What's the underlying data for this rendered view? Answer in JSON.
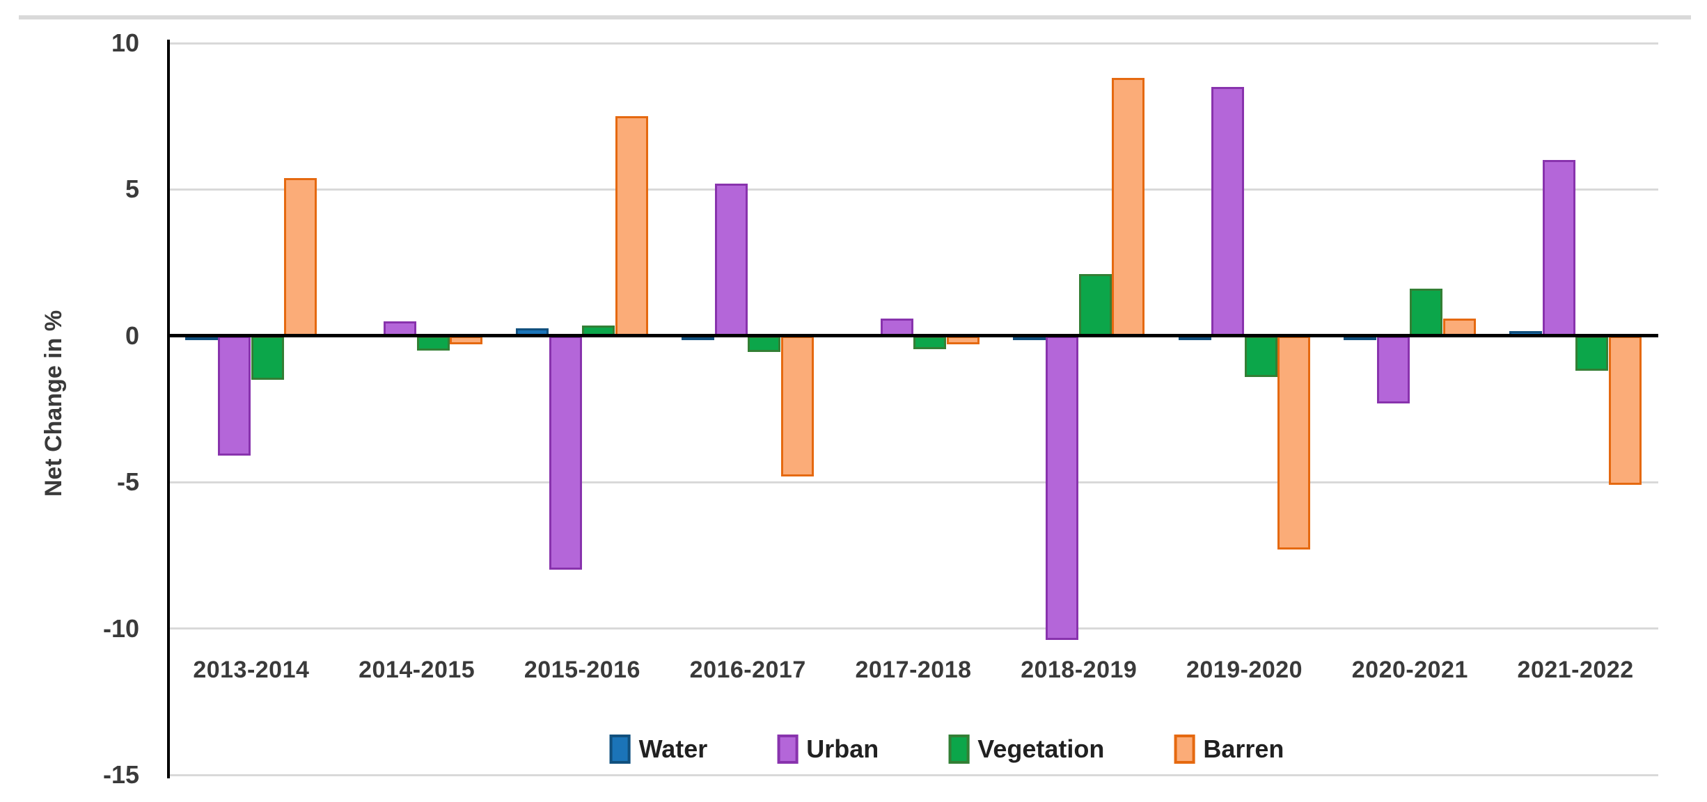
{
  "chart_data": {
    "type": "bar",
    "title": "",
    "ylabel": "Net Change in %",
    "xlabel": "",
    "ylim": [
      -15,
      10
    ],
    "yticks": [
      10,
      5,
      0,
      -5,
      -10,
      -15
    ],
    "grid": true,
    "legend_position": "bottom",
    "gridline_color": "#d9d9d9",
    "axis_color": "#000000",
    "categories": [
      "2013-2014",
      "2014-2015",
      "2015-2016",
      "2016-2017",
      "2017-2018",
      "2018-2019",
      "2019-2020",
      "2020-2021",
      "2021-2022"
    ],
    "series": [
      {
        "name": "Water",
        "fill": "#1b74b8",
        "border": "#11507e",
        "values": [
          -0.15,
          0,
          0.25,
          -0.15,
          0,
          -0.15,
          -0.15,
          -0.15,
          0.15
        ]
      },
      {
        "name": "Urban",
        "fill": "#b466d9",
        "border": "#8833ad",
        "values": [
          -4.1,
          0.5,
          -8.0,
          5.2,
          0.6,
          -10.4,
          8.5,
          -2.3,
          6.0
        ]
      },
      {
        "name": "Vegetation",
        "fill": "#0ca64a",
        "border": "#337f35",
        "values": [
          -1.5,
          -0.5,
          0.35,
          -0.55,
          -0.45,
          2.1,
          -1.4,
          1.6,
          -1.2
        ]
      },
      {
        "name": "Barren",
        "fill": "#fbac78",
        "border": "#e56910",
        "values": [
          5.4,
          -0.3,
          7.5,
          -4.8,
          -0.3,
          8.8,
          -7.3,
          0.6,
          -5.1
        ]
      }
    ]
  }
}
